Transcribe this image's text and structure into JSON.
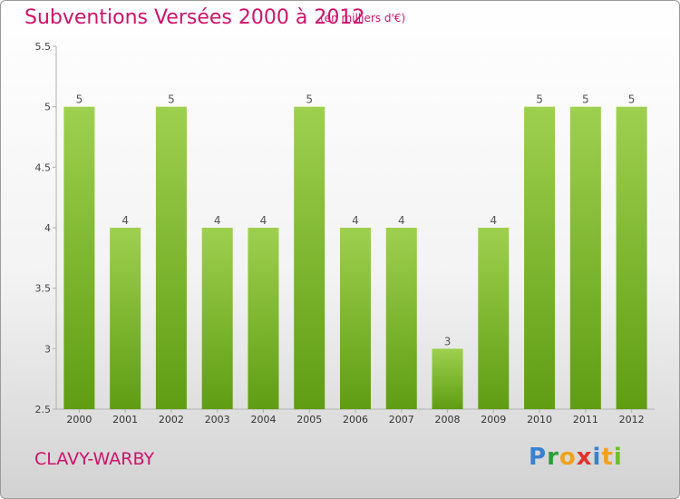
{
  "header": {
    "title": "Subventions Versées 2000 à 2012",
    "subtitle": "(en milliers d'€)"
  },
  "footer": {
    "commune": "CLAVY-WARBY",
    "logo_letters": [
      {
        "ch": "P",
        "color": "#3a7fd1"
      },
      {
        "ch": "r",
        "color": "#2e9d3a"
      },
      {
        "ch": "o",
        "color": "#f1a21b"
      },
      {
        "ch": "x",
        "color": "#e2322a"
      },
      {
        "ch": "i",
        "color": "#3a7fd1"
      },
      {
        "ch": "t",
        "color": "#f1a21b"
      },
      {
        "ch": "i",
        "color": "#6cbf2b"
      }
    ]
  },
  "colors": {
    "bar_top": "#9ed04f",
    "bar_bottom": "#5f9d13",
    "accent": "#d0126b"
  },
  "chart_data": {
    "type": "bar",
    "categories": [
      "2000",
      "2001",
      "2002",
      "2003",
      "2004",
      "2005",
      "2006",
      "2007",
      "2008",
      "2009",
      "2010",
      "2011",
      "2012"
    ],
    "values": [
      5,
      4,
      5,
      4,
      4,
      5,
      4,
      4,
      3,
      4,
      5,
      5,
      5
    ],
    "data_labels": [
      "5",
      "4",
      "5",
      "4",
      "4",
      "5",
      "4",
      "4",
      "3",
      "4",
      "5",
      "5",
      "5"
    ],
    "title": "Subventions Versées 2000 à 2012",
    "xlabel": "",
    "ylabel": "",
    "ylim": [
      2.5,
      5.5
    ],
    "yticks": [
      2.5,
      3,
      3.5,
      4,
      4.5,
      5,
      5.5
    ],
    "ytick_labels": [
      "2.5",
      "3",
      "3.5",
      "4",
      "4.5",
      "5",
      "5.5"
    ],
    "grid": false,
    "legend": "none"
  }
}
